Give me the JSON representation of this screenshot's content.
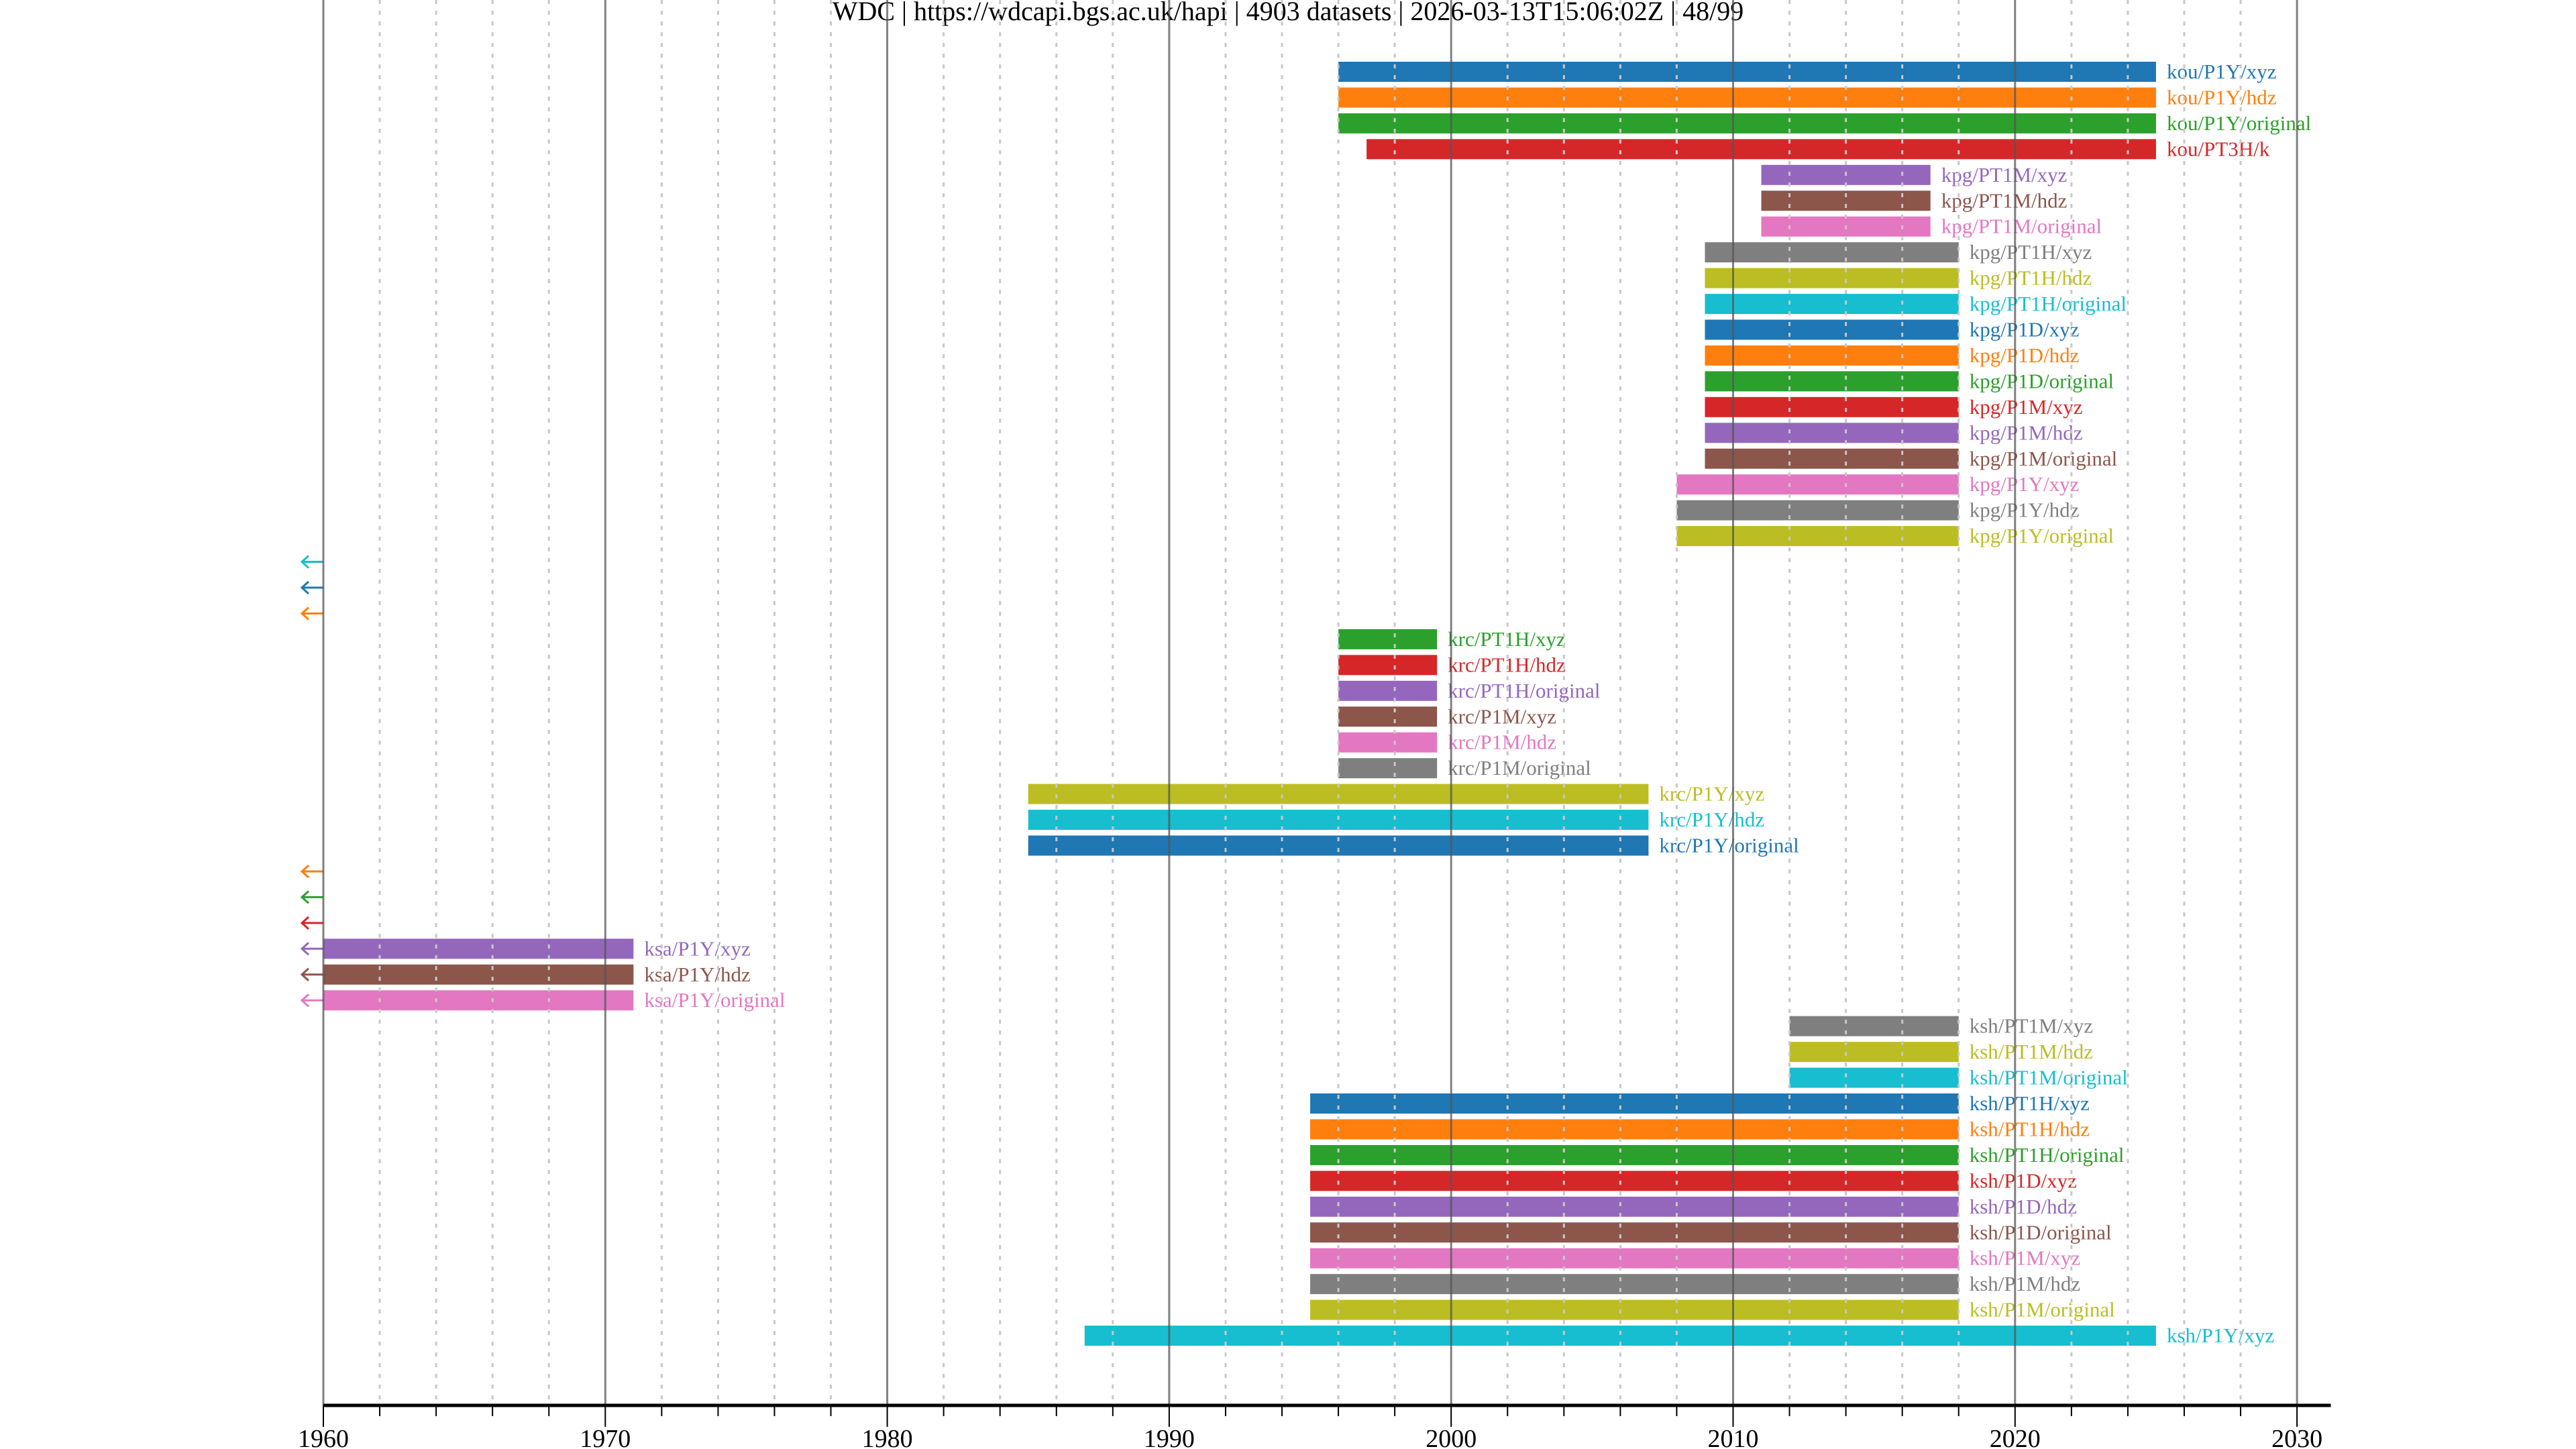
{
  "title": "WDC | https://wdcapi.bgs.ac.uk/hapi | 4903 datasets | 2026-03-13T15:06:02Z | 48/99",
  "chart_data": {
    "type": "bar",
    "orientation": "horizontal-timeline",
    "xlim": [
      1960,
      2031.2
    ],
    "x_ticks": [
      "1960",
      "1970",
      "1980",
      "1990",
      "2000",
      "2010",
      "2020",
      "2030"
    ],
    "x_minor_step_years": 2,
    "grid": true,
    "palette": [
      "#1f77b4",
      "#ff7f0e",
      "#2ca02c",
      "#d62728",
      "#9467bd",
      "#8c564b",
      "#e377c2",
      "#7f7f7f",
      "#bcbd22",
      "#17becf"
    ],
    "rows": [
      {
        "label": "kou/P1Y/xyz",
        "start": 1996,
        "end": 2025
      },
      {
        "label": "kou/P1Y/hdz",
        "start": 1996,
        "end": 2025
      },
      {
        "label": "kou/P1Y/original",
        "start": 1996,
        "end": 2025
      },
      {
        "label": "kou/PT3H/k",
        "start": 1997,
        "end": 2025
      },
      {
        "label": "kpg/PT1M/xyz",
        "start": 2011,
        "end": 2017
      },
      {
        "label": "kpg/PT1M/hdz",
        "start": 2011,
        "end": 2017
      },
      {
        "label": "kpg/PT1M/original",
        "start": 2011,
        "end": 2017
      },
      {
        "label": "kpg/PT1H/xyz",
        "start": 2009,
        "end": 2018
      },
      {
        "label": "kpg/PT1H/hdz",
        "start": 2009,
        "end": 2018
      },
      {
        "label": "kpg/PT1H/original",
        "start": 2009,
        "end": 2018
      },
      {
        "label": "kpg/P1D/xyz",
        "start": 2009,
        "end": 2018
      },
      {
        "label": "kpg/P1D/hdz",
        "start": 2009,
        "end": 2018
      },
      {
        "label": "kpg/P1D/original",
        "start": 2009,
        "end": 2018
      },
      {
        "label": "kpg/P1M/xyz",
        "start": 2009,
        "end": 2018
      },
      {
        "label": "kpg/P1M/hdz",
        "start": 2009,
        "end": 2018
      },
      {
        "label": "kpg/P1M/original",
        "start": 2009,
        "end": 2018
      },
      {
        "label": "kpg/P1Y/xyz",
        "start": 2008,
        "end": 2018
      },
      {
        "label": "kpg/P1Y/hdz",
        "start": 2008,
        "end": 2018
      },
      {
        "label": "kpg/P1Y/original",
        "start": 2008,
        "end": 2018
      },
      {
        "label": "",
        "start": null,
        "end": null,
        "before_axis": true
      },
      {
        "label": "",
        "start": null,
        "end": null,
        "before_axis": true
      },
      {
        "label": "",
        "start": null,
        "end": null,
        "before_axis": true
      },
      {
        "label": "krc/PT1H/xyz",
        "start": 1996,
        "end": 1999.5
      },
      {
        "label": "krc/PT1H/hdz",
        "start": 1996,
        "end": 1999.5
      },
      {
        "label": "krc/PT1H/original",
        "start": 1996,
        "end": 1999.5
      },
      {
        "label": "krc/P1M/xyz",
        "start": 1996,
        "end": 1999.5
      },
      {
        "label": "krc/P1M/hdz",
        "start": 1996,
        "end": 1999.5
      },
      {
        "label": "krc/P1M/original",
        "start": 1996,
        "end": 1999.5
      },
      {
        "label": "krc/P1Y/xyz",
        "start": 1985,
        "end": 2007
      },
      {
        "label": "krc/P1Y/hdz",
        "start": 1985,
        "end": 2007
      },
      {
        "label": "krc/P1Y/original",
        "start": 1985,
        "end": 2007
      },
      {
        "label": "",
        "start": null,
        "end": null,
        "before_axis": true
      },
      {
        "label": "",
        "start": null,
        "end": null,
        "before_axis": true
      },
      {
        "label": "",
        "start": null,
        "end": null,
        "before_axis": true
      },
      {
        "label": "ksa/P1Y/xyz",
        "start": null,
        "end": 1971,
        "before_axis": true
      },
      {
        "label": "ksa/P1Y/hdz",
        "start": null,
        "end": 1971,
        "before_axis": true
      },
      {
        "label": "ksa/P1Y/original",
        "start": null,
        "end": 1971,
        "before_axis": true
      },
      {
        "label": "ksh/PT1M/xyz",
        "start": 2012,
        "end": 2018
      },
      {
        "label": "ksh/PT1M/hdz",
        "start": 2012,
        "end": 2018
      },
      {
        "label": "ksh/PT1M/original",
        "start": 2012,
        "end": 2018
      },
      {
        "label": "ksh/PT1H/xyz",
        "start": 1995,
        "end": 2018
      },
      {
        "label": "ksh/PT1H/hdz",
        "start": 1995,
        "end": 2018
      },
      {
        "label": "ksh/PT1H/original",
        "start": 1995,
        "end": 2018
      },
      {
        "label": "ksh/P1D/xyz",
        "start": 1995,
        "end": 2018
      },
      {
        "label": "ksh/P1D/hdz",
        "start": 1995,
        "end": 2018
      },
      {
        "label": "ksh/P1D/original",
        "start": 1995,
        "end": 2018
      },
      {
        "label": "ksh/P1M/xyz",
        "start": 1995,
        "end": 2018
      },
      {
        "label": "ksh/P1M/hdz",
        "start": 1995,
        "end": 2018
      },
      {
        "label": "ksh/P1M/original",
        "start": 1995,
        "end": 2018
      },
      {
        "label": "ksh/P1Y/xyz",
        "start": 1987,
        "end": 2025
      }
    ]
  }
}
